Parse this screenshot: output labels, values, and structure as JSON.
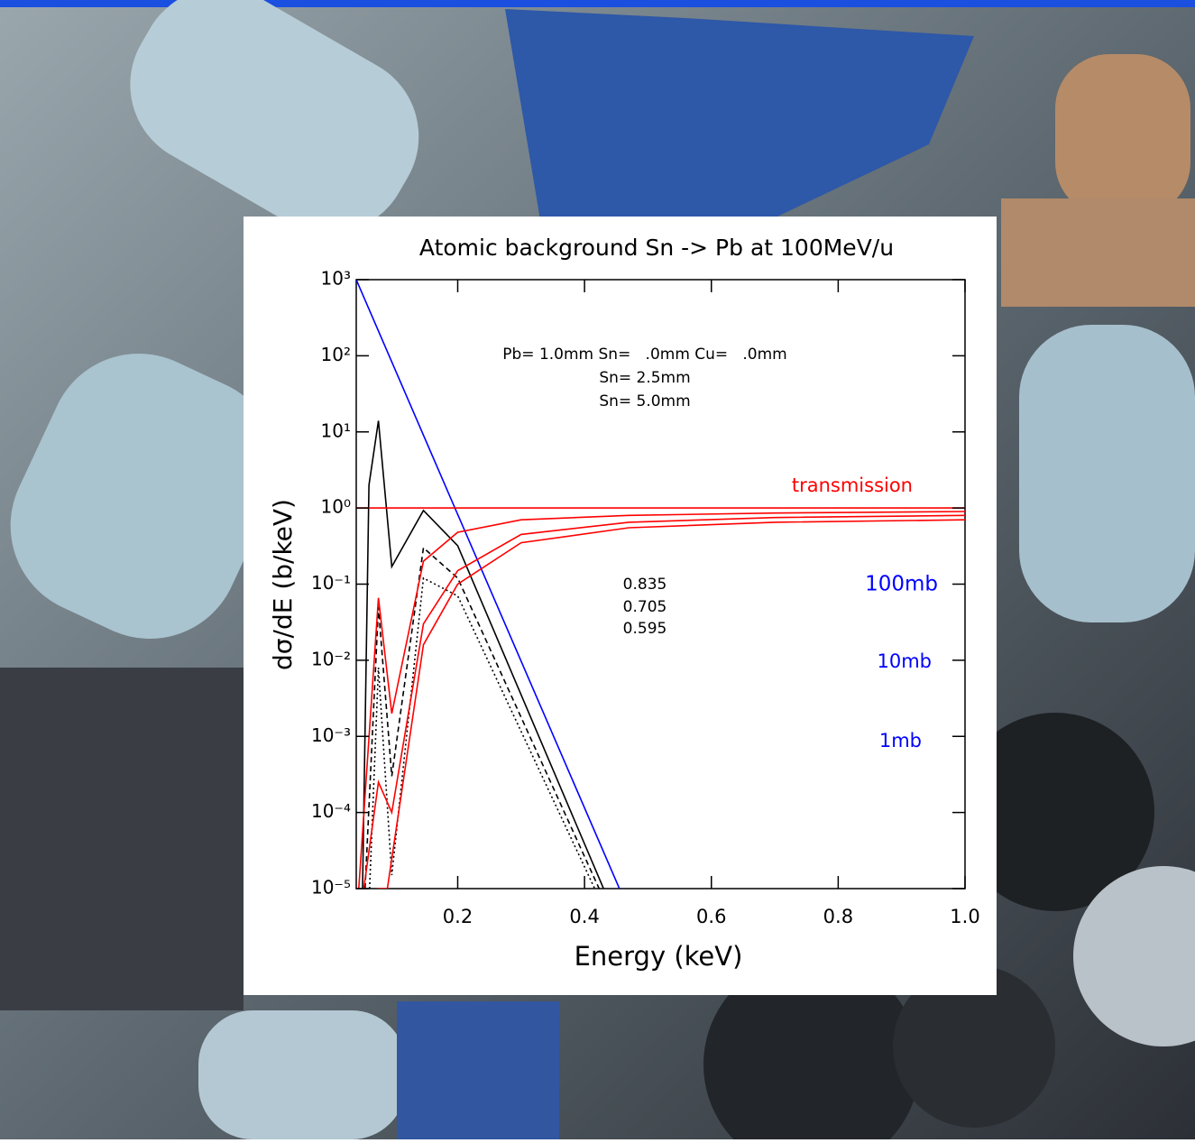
{
  "chart_data": {
    "type": "line",
    "title": "Atomic background Sn -> Pb at 100MeV/u",
    "x_label": "Energy (keV)",
    "y_label": "dσ/dE (b/keV)",
    "yscale": "log",
    "xlim": [
      0.04,
      1.0
    ],
    "ylim": [
      1e-05,
      1000
    ],
    "xticks": [
      0.2,
      0.4,
      0.6,
      0.8,
      {
        "value": 1,
        "label": "1.0"
      }
    ],
    "yticks": [
      {
        "value": 1000,
        "label": "10³"
      },
      {
        "value": 100,
        "label": "10²"
      },
      {
        "value": 10,
        "label": "10¹"
      },
      {
        "value": 1,
        "label": "10⁰"
      },
      {
        "value": 0.1,
        "label": "10⁻¹"
      },
      {
        "value": 0.01,
        "label": "10⁻²"
      },
      {
        "value": 0.001,
        "label": "10⁻³"
      },
      {
        "value": 0.0001,
        "label": "10⁻⁴"
      },
      {
        "value": 1e-05,
        "label": "10⁻⁵"
      }
    ],
    "series": [
      {
        "color": "#0000ff",
        "dash": "solid",
        "x": [
          0.04,
          0.455
        ],
        "values": [
          1000,
          1e-05
        ]
      },
      {
        "color": "#000000",
        "dash": "solid",
        "x": [
          0.05,
          0.06,
          0.075,
          0.096,
          0.146,
          0.2,
          0.43
        ],
        "values": [
          1e-05,
          2,
          14,
          0.17,
          0.93,
          0.32,
          1e-05
        ]
      },
      {
        "color": "#000000",
        "dash": "dashed",
        "x": [
          0.054,
          0.075,
          0.096,
          0.146,
          0.2,
          0.423
        ],
        "values": [
          1e-05,
          0.05,
          0.0003,
          0.3,
          0.12,
          1e-05
        ]
      },
      {
        "color": "#000000",
        "dash": "dotted",
        "x": [
          0.061,
          0.075,
          0.096,
          0.146,
          0.2,
          0.416
        ],
        "values": [
          1e-05,
          0.008,
          1.5e-05,
          0.12,
          0.07,
          1e-05
        ]
      },
      {
        "color": "#ff0000",
        "dash": "solid",
        "x": [
          0.04,
          1.0
        ],
        "values": [
          1,
          1
        ]
      },
      {
        "color": "#ff0000",
        "dash": "solid",
        "x": [
          0.044,
          0.075,
          0.096,
          0.146,
          0.2,
          0.3,
          0.47,
          0.7,
          1.0
        ],
        "values": [
          1e-05,
          0.066,
          0.002,
          0.2,
          0.48,
          0.7,
          0.8,
          0.86,
          0.9
        ]
      },
      {
        "color": "#ff0000",
        "dash": "solid",
        "x": [
          0.052,
          0.075,
          0.096,
          0.146,
          0.2,
          0.3,
          0.47,
          0.7,
          1.0
        ],
        "values": [
          1e-05,
          0.00025,
          0.0001,
          0.03,
          0.15,
          0.45,
          0.65,
          0.75,
          0.8
        ]
      },
      {
        "color": "#ff0000",
        "dash": "solid",
        "x": [
          0.073,
          0.089,
          0.146,
          0.2,
          0.3,
          0.47,
          0.7,
          1.0
        ],
        "values": [
          1e-05,
          1e-05,
          0.016,
          0.1,
          0.35,
          0.55,
          0.65,
          0.7
        ]
      }
    ],
    "annotations": [
      {
        "text": "Pb= 1.0mm Sn=   .0mm Cu=   .0mm",
        "color": "#000000"
      },
      {
        "text": "Sn= 2.5mm",
        "color": "#000000"
      },
      {
        "text": "Sn= 5.0mm",
        "color": "#000000"
      },
      {
        "text": "transmission",
        "color": "#ff0000"
      },
      {
        "text": "0.835",
        "color": "#000000"
      },
      {
        "text": "0.705",
        "color": "#000000"
      },
      {
        "text": "0.595",
        "color": "#000000"
      },
      {
        "text": "100mb",
        "color": "#0000ff"
      },
      {
        "text": "10mb",
        "color": "#0000ff"
      },
      {
        "text": "1mb",
        "color": "#0000ff"
      }
    ]
  }
}
